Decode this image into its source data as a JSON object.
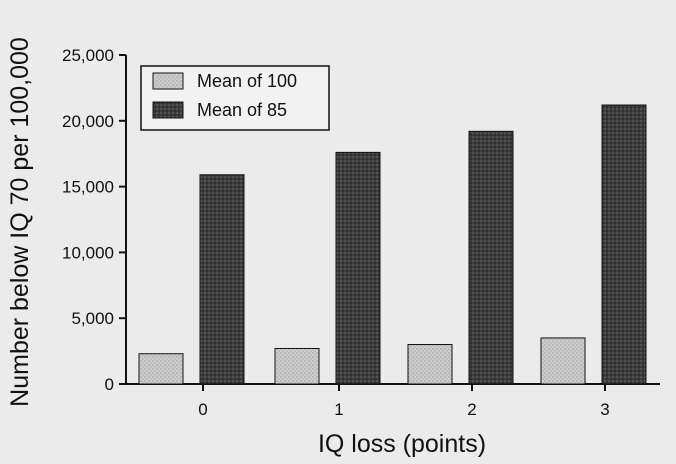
{
  "chart_data": {
    "type": "bar",
    "title": "",
    "xlabel": "IQ loss (points)",
    "ylabel": "Number below IQ 70 per 100,000",
    "categories": [
      "0",
      "1",
      "2",
      "3"
    ],
    "series": [
      {
        "name": "Mean of 100",
        "values": [
          2300,
          2700,
          3000,
          3500
        ],
        "color": "#c8c8c8"
      },
      {
        "name": "Mean of 85",
        "values": [
          15900,
          17600,
          19200,
          21200
        ],
        "color": "#444444"
      }
    ],
    "ylim": [
      0,
      25000
    ],
    "yticks": [
      {
        "value": 0,
        "label": "0"
      },
      {
        "value": 5000,
        "label": "5,000"
      },
      {
        "value": 10000,
        "label": "10,000"
      },
      {
        "value": 15000,
        "label": "15,000"
      },
      {
        "value": 20000,
        "label": "20,000"
      },
      {
        "value": 25000,
        "label": "25,000"
      }
    ],
    "grid": false,
    "legend_position": "top-left"
  }
}
